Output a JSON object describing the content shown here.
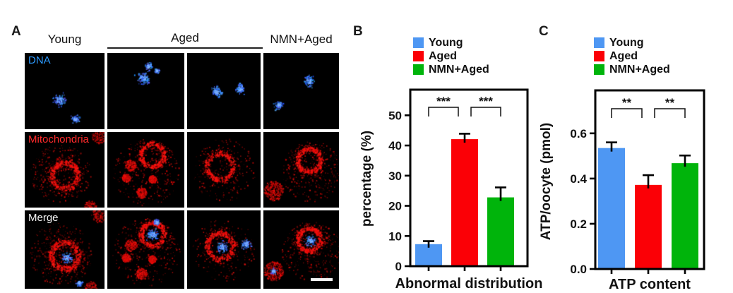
{
  "figure_labels": {
    "a": "A",
    "b": "B",
    "c": "C"
  },
  "panel_a": {
    "column_headers": {
      "col1": "Young",
      "col2_3": "Aged",
      "col4": "NMN+Aged"
    },
    "row_labels": {
      "dna": "DNA",
      "mitochondria": "Mitochondria",
      "merge": "Merge"
    },
    "row_label_colors": {
      "dna": "#2D9BFF",
      "mitochondria": "#FF2A2A",
      "merge": "#F2F2F2"
    },
    "grid": {
      "rows": 3,
      "columns": 4,
      "aged_spans_columns": 2
    }
  },
  "legend": {
    "items": [
      {
        "label": "Young",
        "color": "#4E97F3"
      },
      {
        "label": "Aged",
        "color": "#FB0006"
      },
      {
        "label": "NMN+Aged",
        "color": "#00B40B"
      }
    ]
  },
  "chart_data": [
    {
      "type": "bar",
      "panel": "B",
      "title": "",
      "categories": [
        "Young",
        "Aged",
        "NMN+Aged"
      ],
      "values": [
        7.3,
        42.1,
        22.8
      ],
      "errors": [
        1.0,
        1.8,
        3.3
      ],
      "bar_colors": [
        "#4E97F3",
        "#FB0006",
        "#00B40B"
      ],
      "ylabel": "percentage (%)",
      "xlabel": "Abnormal distribution",
      "ylim": [
        0,
        58.5
      ],
      "yticks": [
        0,
        10,
        20,
        30,
        40,
        50
      ],
      "ytick_labels": [
        "0",
        "10",
        "20",
        "30",
        "40",
        "50"
      ],
      "grid": "off",
      "frame": "full-box",
      "legend_position": "above-top-left",
      "significance": [
        {
          "between": [
            "Young",
            "Aged"
          ],
          "label": "***"
        },
        {
          "between": [
            "Aged",
            "NMN+Aged"
          ],
          "label": "***"
        }
      ]
    },
    {
      "type": "bar",
      "panel": "C",
      "title": "",
      "categories": [
        "Young",
        "Aged",
        "NMN+Aged"
      ],
      "values": [
        0.535,
        0.372,
        0.468
      ],
      "errors": [
        0.025,
        0.043,
        0.034
      ],
      "bar_colors": [
        "#4E97F3",
        "#FB0006",
        "#00B40B"
      ],
      "ylabel": "ATP/oocyte (pmol)",
      "xlabel": "ATP content",
      "ylim": [
        0,
        0.79
      ],
      "yticks": [
        0,
        0.2,
        0.4,
        0.6
      ],
      "ytick_labels": [
        "0.0",
        "0.2",
        "0.4",
        "0.6"
      ],
      "grid": "off",
      "frame": "full-box",
      "legend_position": "above-top-left",
      "significance": [
        {
          "between": [
            "Young",
            "Aged"
          ],
          "label": "**"
        },
        {
          "between": [
            "Aged",
            "NMN+Aged"
          ],
          "label": "**"
        }
      ]
    }
  ]
}
